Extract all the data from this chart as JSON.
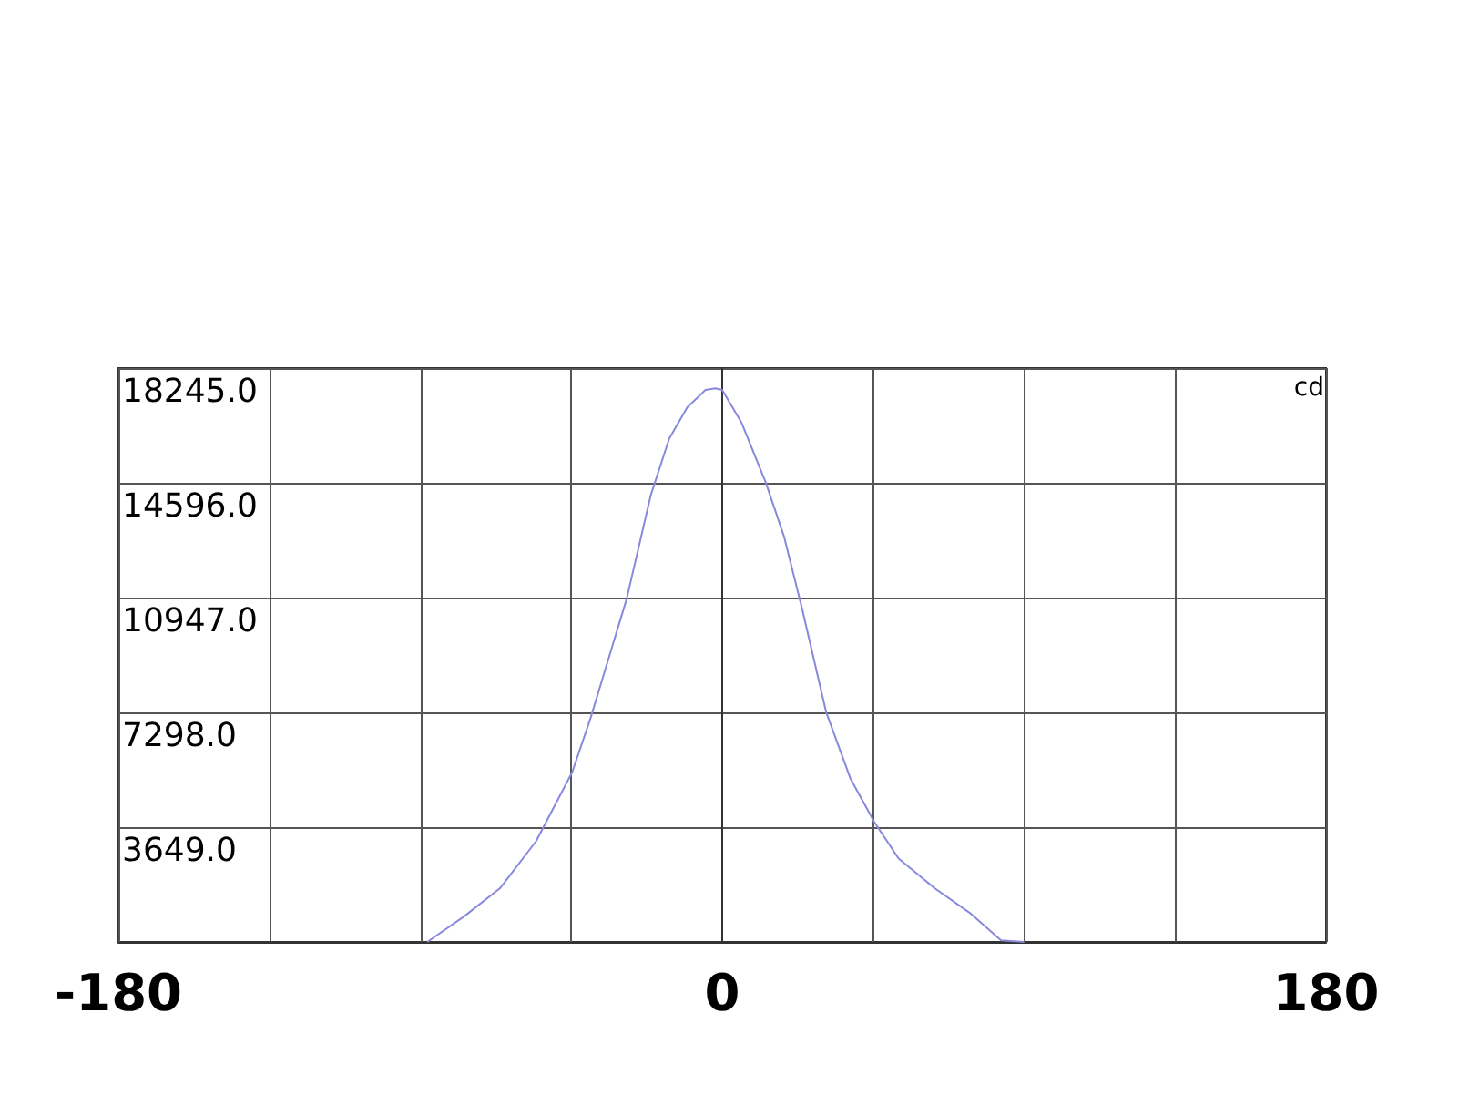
{
  "chart_data": {
    "type": "line",
    "ylabel": "cd",
    "x": [
      -87.9,
      -77.1,
      -66.3,
      -55.5,
      -44.7,
      -39.3,
      -33.9,
      -28.5,
      -21.3,
      -15.8,
      -10.4,
      -5.0,
      -2.0,
      0,
      5.8,
      13.0,
      18.4,
      23.8,
      31.0,
      38.2,
      45.4,
      52.6,
      63.4,
      74.1,
      83.1,
      90
    ],
    "series": [
      {
        "color": "#8888dd",
        "values": [
          0,
          800,
          1700,
          3200,
          5400,
          7100,
          9000,
          10900,
          14200,
          16000,
          17000,
          17550,
          17600,
          17550,
          16500,
          14600,
          12900,
          10600,
          7300,
          5200,
          3800,
          2650,
          1700,
          900,
          50,
          0
        ]
      }
    ],
    "xlim": [
      -180,
      180
    ],
    "xticks": [
      -180,
      {
        "value": -135,
        "label": null
      },
      {
        "value": -90,
        "label": null
      },
      {
        "value": -45,
        "label": null
      },
      0,
      {
        "value": 45,
        "label": null
      },
      {
        "value": 90,
        "label": null
      },
      {
        "value": 135,
        "label": null
      },
      180
    ],
    "ylim": [
      0,
      18245
    ],
    "yticks": [
      {
        "value": 0,
        "label": null
      },
      {
        "value": 3649,
        "label": "3649.0"
      },
      {
        "value": 7298,
        "label": "7298.0"
      },
      {
        "value": 10947,
        "label": "10947.0"
      },
      {
        "value": 14596,
        "label": "14596.0"
      },
      {
        "value": 18245,
        "label": "18245.0"
      }
    ],
    "grid": true,
    "marker": "none",
    "line_style": "solid"
  }
}
